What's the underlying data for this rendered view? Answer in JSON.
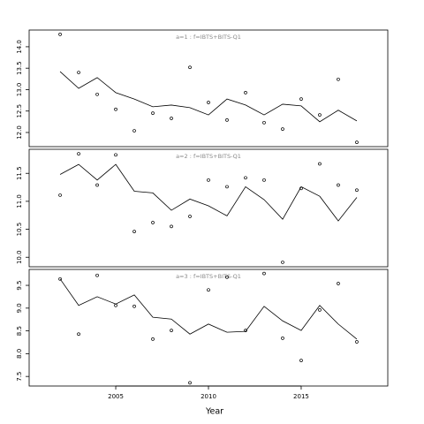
{
  "chart_data": [
    {
      "type": "line",
      "title": "a=1  :  f=IBTS+BITS-Q1",
      "x": [
        2002,
        2003,
        2004,
        2005,
        2006,
        2007,
        2008,
        2009,
        2010,
        2011,
        2012,
        2013,
        2014,
        2015,
        2016,
        2017,
        2018
      ],
      "xlim": [
        2000.33,
        2019.67
      ],
      "ylim": [
        11.67,
        14.39
      ],
      "yticks": [
        {
          "value": 12,
          "label": "12.0"
        },
        12.5,
        {
          "value": 13,
          "label": "13.0"
        },
        13.5,
        {
          "value": 14,
          "label": "14.0"
        }
      ],
      "series": [
        {
          "marker": "circle",
          "color": "#000000",
          "values": [
            14.29,
            13.4,
            12.89,
            12.54,
            12.04,
            12.45,
            12.33,
            13.52,
            12.7,
            12.29,
            12.93,
            12.23,
            12.08,
            12.78,
            12.41,
            13.24,
            11.77
          ]
        },
        {
          "marker": "none",
          "color": "#000000",
          "values": [
            13.42,
            13.03,
            13.28,
            12.93,
            12.78,
            12.6,
            12.64,
            12.58,
            12.41,
            12.78,
            12.64,
            12.41,
            12.66,
            12.62,
            12.25,
            12.52,
            12.27
          ]
        }
      ]
    },
    {
      "type": "line",
      "title": "a=2  :  f=IBTS+BITS-Q1",
      "x": [
        2002,
        2003,
        2004,
        2005,
        2006,
        2007,
        2008,
        2009,
        2010,
        2011,
        2012,
        2013,
        2014,
        2015,
        2016,
        2017,
        2018
      ],
      "xlim": [
        2000.33,
        2019.67
      ],
      "ylim": [
        9.83,
        11.93
      ],
      "yticks": [
        {
          "value": 10,
          "label": "10.0"
        },
        10.5,
        {
          "value": 11,
          "label": "11.0"
        },
        11.5
      ],
      "series": [
        {
          "marker": "circle",
          "color": "#000000",
          "values": [
            11.11,
            11.85,
            11.29,
            11.83,
            10.46,
            10.62,
            10.55,
            10.73,
            11.38,
            11.26,
            11.42,
            11.38,
            9.91,
            11.23,
            11.67,
            11.29,
            11.2
          ]
        },
        {
          "marker": "none",
          "color": "#000000",
          "values": [
            11.48,
            11.66,
            11.38,
            11.66,
            11.18,
            11.15,
            10.84,
            11.04,
            10.92,
            10.74,
            11.26,
            11.03,
            10.68,
            11.26,
            11.09,
            10.65,
            11.07
          ]
        }
      ]
    },
    {
      "type": "line",
      "title": "a=3  :  f=IBTS+BITS-Q1",
      "xlabel": "Year",
      "x": [
        2002,
        2003,
        2004,
        2005,
        2006,
        2007,
        2008,
        2009,
        2010,
        2011,
        2012,
        2013,
        2014,
        2015,
        2016,
        2017,
        2018
      ],
      "xlim": [
        2000.33,
        2019.67
      ],
      "xticks": [
        2005,
        2010,
        2015
      ],
      "ylim": [
        7.29,
        9.85
      ],
      "yticks": [
        7.5,
        {
          "value": 8,
          "label": "8.0"
        },
        8.5,
        {
          "value": 9,
          "label": "9.0"
        },
        9.5
      ],
      "series": [
        {
          "marker": "circle",
          "color": "#000000",
          "values": [
            9.64,
            8.43,
            9.72,
            9.06,
            9.04,
            8.32,
            8.51,
            7.36,
            9.4,
            9.68,
            8.51,
            9.76,
            8.34,
            7.85,
            8.96,
            9.54,
            8.26
          ]
        },
        {
          "marker": "none",
          "color": "#000000",
          "values": [
            9.64,
            9.06,
            9.25,
            9.09,
            9.29,
            8.8,
            8.76,
            8.43,
            8.65,
            8.47,
            8.49,
            9.04,
            8.72,
            8.51,
            9.06,
            8.65,
            8.32
          ]
        }
      ]
    }
  ]
}
